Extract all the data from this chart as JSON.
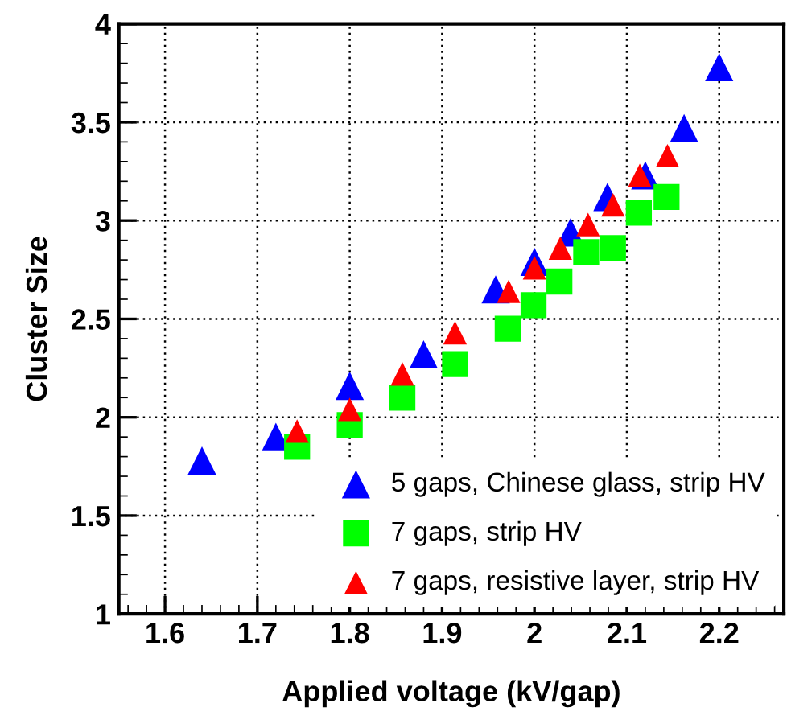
{
  "chart_data": {
    "type": "scatter",
    "xlabel": "Applied voltage (kV/gap)",
    "ylabel": "Cluster Size",
    "xlim": [
      1.55,
      2.27
    ],
    "ylim": [
      1,
      4
    ],
    "xticks": [
      1.6,
      1.7,
      1.8,
      1.9,
      {
        "value": 2,
        "label": "2"
      },
      2.1,
      2.2
    ],
    "yticks": [
      1,
      1.5,
      2,
      2.5,
      3,
      3.5,
      4
    ],
    "grid": true,
    "legend": "bottom right",
    "series": [
      {
        "name": "5 gaps, Chinese glass, strip HV",
        "color": "#0000ff",
        "marker": "triangle",
        "x": [
          1.64,
          1.72,
          1.8,
          1.88,
          1.958,
          2.0,
          2.039,
          2.079,
          2.12,
          2.162,
          2.2
        ],
        "values": [
          1.78,
          1.9,
          2.16,
          2.32,
          2.65,
          2.79,
          2.94,
          3.12,
          3.23,
          3.47,
          3.78
        ]
      },
      {
        "name": "7 gaps, strip HV",
        "color": "#00ff00",
        "marker": "square",
        "x": [
          1.743,
          1.8,
          1.857,
          1.914,
          1.971,
          1.999,
          2.027,
          2.056,
          2.085,
          2.113,
          2.143
        ],
        "values": [
          1.85,
          1.96,
          2.1,
          2.27,
          2.45,
          2.57,
          2.69,
          2.84,
          2.86,
          3.04,
          3.12
        ]
      },
      {
        "name": "7 gaps, resistive layer, strip HV",
        "color": "#ff0000",
        "marker": "triangle",
        "x": [
          1.743,
          1.8,
          1.857,
          1.914,
          1.972,
          2.0,
          2.028,
          2.058,
          2.085,
          2.114,
          2.144
        ],
        "values": [
          1.93,
          2.04,
          2.22,
          2.43,
          2.64,
          2.76,
          2.86,
          2.98,
          3.08,
          3.23,
          3.33
        ]
      }
    ]
  }
}
